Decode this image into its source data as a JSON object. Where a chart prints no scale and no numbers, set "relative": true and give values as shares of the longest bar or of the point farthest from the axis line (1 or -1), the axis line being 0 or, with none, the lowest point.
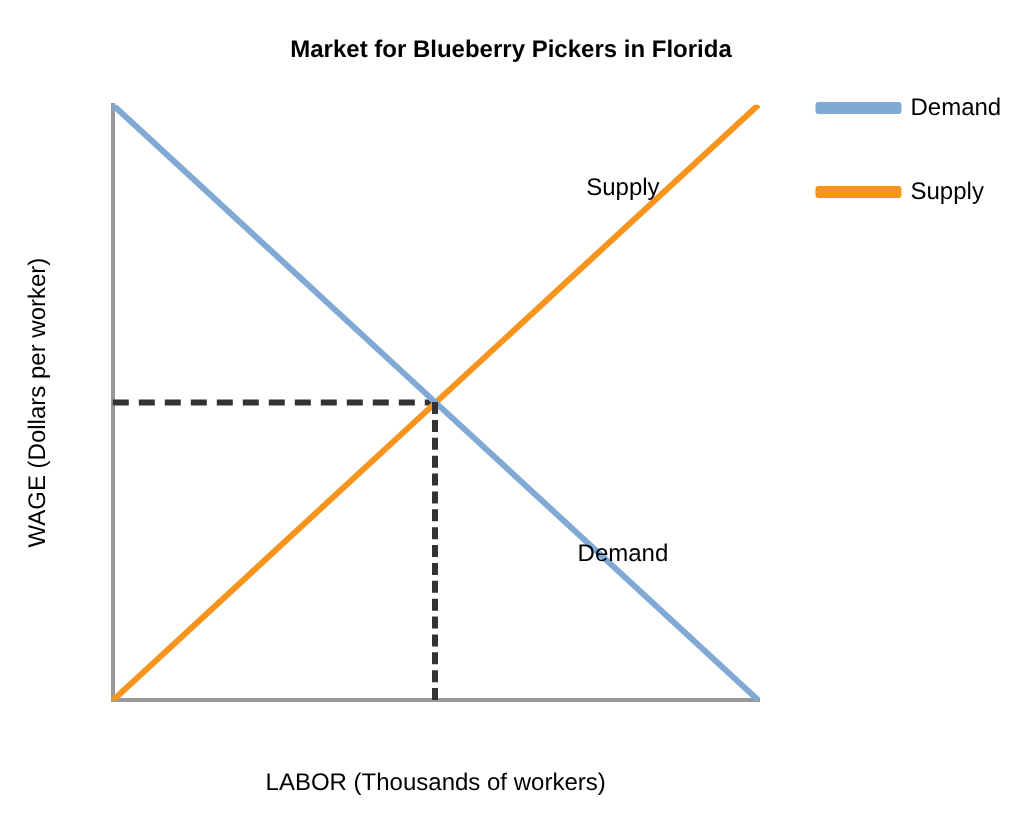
{
  "chart_data": {
    "type": "line",
    "title": "Market for Blueberry Pickers in Florida",
    "xlabel": "LABOR (Thousands of workers)",
    "ylabel": "WAGE (Dollars per worker)",
    "relative": true,
    "grid": false,
    "legend": "top right",
    "categories": [
      null,
      null,
      null
    ],
    "series": [
      {
        "name": "Demand",
        "color": "#80aad4",
        "values": [
          1,
          0.5,
          0
        ]
      },
      {
        "name": "Supply",
        "color": "#f7941d",
        "values": [
          0,
          0.5,
          1
        ]
      },
      {
        "color": "#333333",
        "line_style": "dashed",
        "values": [
          0.5,
          0.5,
          null
        ]
      }
    ],
    "annotations": [
      "Supply",
      "Demand"
    ]
  }
}
